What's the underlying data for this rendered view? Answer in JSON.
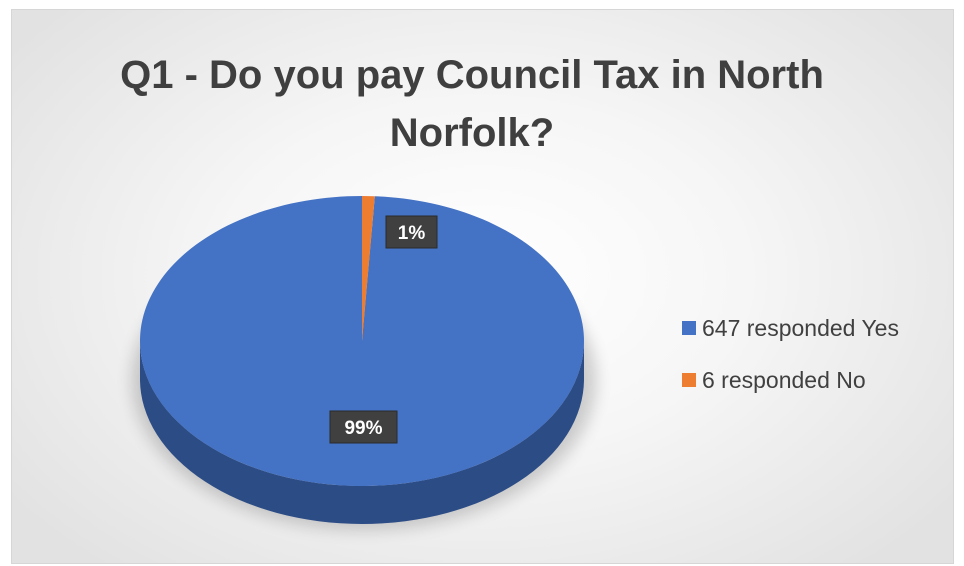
{
  "chart_data": {
    "type": "pie",
    "title": "Q1 - Do you pay Council Tax in North Norfolk?",
    "labels": [
      "647 responded Yes",
      "6 responded No"
    ],
    "values": [
      647,
      6
    ],
    "data_labels": [
      "99%",
      "1%"
    ],
    "colors": [
      "#4472c4",
      "#ed7d31"
    ],
    "legend_position": "right"
  }
}
